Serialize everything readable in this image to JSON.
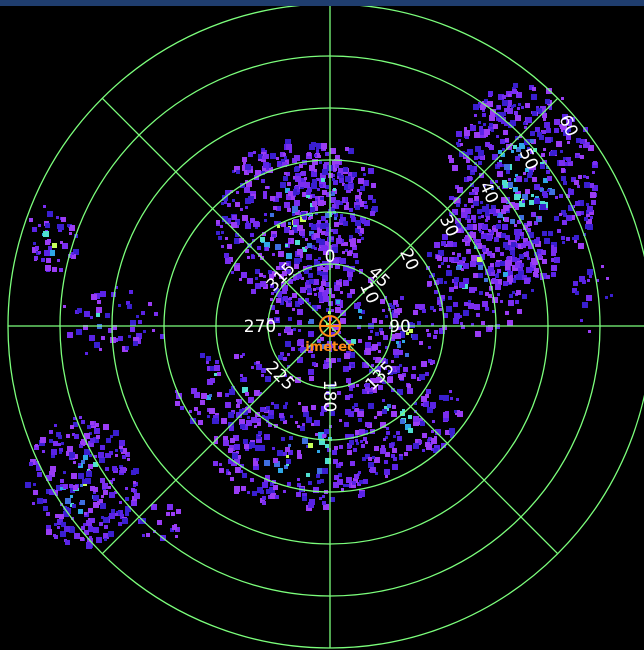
{
  "range_rings": [
    {
      "label": "10",
      "km": 10
    },
    {
      "label": "20",
      "km": 20
    },
    {
      "label": "30",
      "km": 30
    },
    {
      "label": "40",
      "km": 40
    },
    {
      "label": "50",
      "km": 50
    },
    {
      "label": "60",
      "km": 60
    }
  ],
  "azimuth_labels": [
    {
      "label": "0",
      "deg": 0
    },
    {
      "label": "45",
      "deg": 45
    },
    {
      "label": "90",
      "deg": 90
    },
    {
      "label": "135",
      "deg": 135
    },
    {
      "label": "180",
      "deg": 180
    },
    {
      "label": "225",
      "deg": 225
    },
    {
      "label": "270",
      "deg": 270
    },
    {
      "label": "315",
      "deg": 315
    }
  ],
  "station": {
    "name": "imetec",
    "icon": "crosshair-circle-icon",
    "color": "#ff8c1a"
  },
  "colors": {
    "background": "#000000",
    "grid": "#7cff7c",
    "labels": "#ffffff",
    "header_bar": "#1f3d6e"
  },
  "echo_palette": [
    "#3a1fd0",
    "#5a23e6",
    "#7a2ef0",
    "#9a3cf5",
    "#3f6fe0",
    "#2fa8e8",
    "#4fe0d0",
    "#c8ff5a"
  ]
}
